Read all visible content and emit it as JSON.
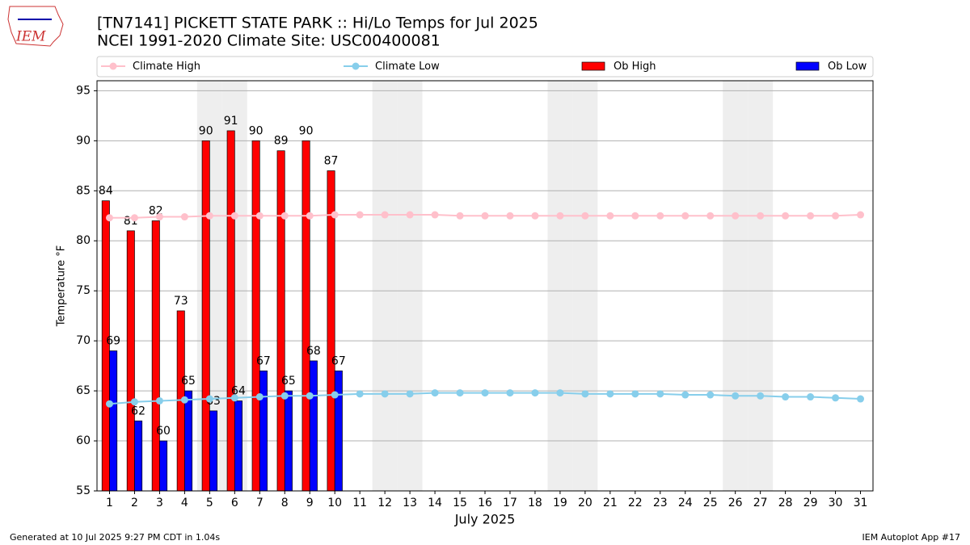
{
  "logo_text": "IEM",
  "footer_left": "Generated at 10 Jul 2025 9:27 PM CDT in 1.04s",
  "footer_right": "IEM Autoplot App #17",
  "chart_data": {
    "type": "bar",
    "title": "[TN7141] PICKETT STATE PARK :: Hi/Lo Temps for Jul 2025",
    "subtitle": "NCEI 1991-2020 Climate Site: USC00400081",
    "x_label": "July 2025",
    "y_label": "Temperature °F",
    "x": [
      1,
      2,
      3,
      4,
      5,
      6,
      7,
      8,
      9,
      10,
      11,
      12,
      13,
      14,
      15,
      16,
      17,
      18,
      19,
      20,
      21,
      22,
      23,
      24,
      25,
      26,
      27,
      28,
      29,
      30,
      31
    ],
    "xlim": [
      0.5,
      31.5
    ],
    "xticks": [
      1,
      2,
      3,
      4,
      5,
      6,
      7,
      8,
      9,
      10,
      11,
      12,
      13,
      14,
      15,
      16,
      17,
      18,
      19,
      20,
      21,
      22,
      23,
      24,
      25,
      26,
      27,
      28,
      29,
      30,
      31
    ],
    "ylim": [
      55,
      96
    ],
    "yticks": [
      55,
      60,
      65,
      70,
      75,
      80,
      85,
      90,
      95
    ],
    "grid": true,
    "shaded_days": [
      5,
      6,
      12,
      13,
      19,
      20,
      26,
      27
    ],
    "series": [
      {
        "name": "Climate High",
        "type": "line",
        "color": "#ffc0cb",
        "values": [
          82.3,
          82.3,
          82.4,
          82.4,
          82.5,
          82.5,
          82.5,
          82.5,
          82.5,
          82.6,
          82.6,
          82.6,
          82.6,
          82.6,
          82.5,
          82.5,
          82.5,
          82.5,
          82.5,
          82.5,
          82.5,
          82.5,
          82.5,
          82.5,
          82.5,
          82.5,
          82.5,
          82.5,
          82.5,
          82.5,
          82.6
        ]
      },
      {
        "name": "Climate Low",
        "type": "line",
        "color": "#87ceeb",
        "values": [
          63.7,
          63.9,
          64.0,
          64.1,
          64.2,
          64.3,
          64.4,
          64.5,
          64.5,
          64.6,
          64.7,
          64.7,
          64.7,
          64.8,
          64.8,
          64.8,
          64.8,
          64.8,
          64.8,
          64.7,
          64.7,
          64.7,
          64.7,
          64.6,
          64.6,
          64.5,
          64.5,
          64.4,
          64.4,
          64.3,
          64.2
        ]
      },
      {
        "name": "Ob High",
        "type": "bar",
        "color": "#ff0000",
        "values": [
          84,
          81,
          82,
          73,
          90,
          91,
          90,
          89,
          90,
          87,
          null,
          null,
          null,
          null,
          null,
          null,
          null,
          null,
          null,
          null,
          null,
          null,
          null,
          null,
          null,
          null,
          null,
          null,
          null,
          null,
          null
        ]
      },
      {
        "name": "Ob Low",
        "type": "bar",
        "color": "#0000ff",
        "values": [
          69,
          62,
          60,
          65,
          63,
          64,
          67,
          65,
          68,
          67,
          null,
          null,
          null,
          null,
          null,
          null,
          null,
          null,
          null,
          null,
          null,
          null,
          null,
          null,
          null,
          null,
          null,
          null,
          null,
          null,
          null
        ]
      }
    ]
  }
}
